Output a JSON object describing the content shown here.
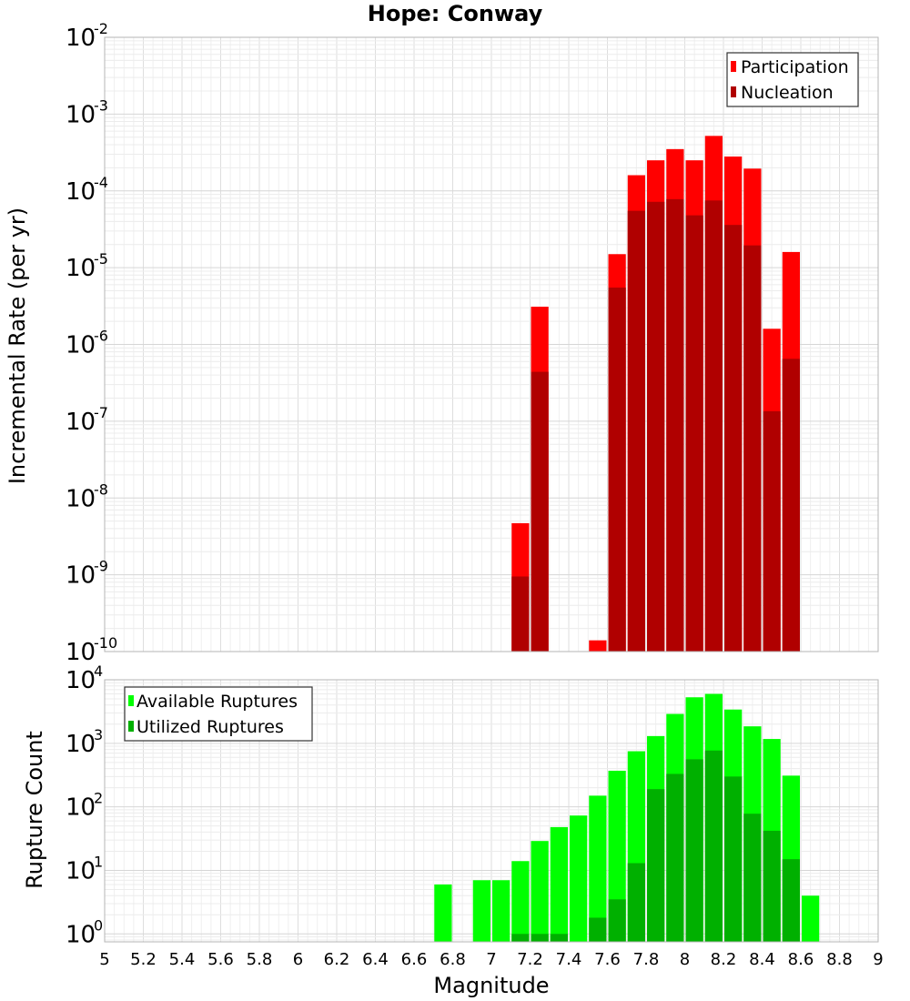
{
  "chart_data": [
    {
      "type": "bar",
      "title": "Hope: Conway",
      "ylabel": "Incremental Rate (per yr)",
      "xlabel": "",
      "xlim": [
        5,
        9
      ],
      "ylim": [
        1e-10,
        0.01
      ],
      "y_scale": "log",
      "grid": true,
      "bar_width": 0.1,
      "legend": {
        "position": "top-right",
        "entries": [
          "Participation",
          "Nucleation"
        ]
      },
      "colors": {
        "Participation": "#ff0000",
        "Nucleation": "#b00000"
      },
      "series": [
        {
          "name": "Participation",
          "x": [
            7.15,
            7.25,
            7.55,
            7.65,
            7.75,
            7.85,
            7.95,
            8.05,
            8.15,
            8.25,
            8.35,
            8.45,
            8.55
          ],
          "values": [
            4.7e-09,
            3.1e-06,
            1.4e-10,
            1.5e-05,
            0.00016,
            0.00025,
            0.00035,
            0.00025,
            0.00052,
            0.00028,
            0.000195,
            1.6e-06,
            1.6e-05
          ]
        },
        {
          "name": "Nucleation",
          "x": [
            7.15,
            7.25,
            7.65,
            7.75,
            7.85,
            7.95,
            8.05,
            8.15,
            8.25,
            8.35,
            8.45,
            8.55
          ],
          "values": [
            9.5e-10,
            4.4e-07,
            5.5e-06,
            5.5e-05,
            7.2e-05,
            7.8e-05,
            4.8e-05,
            7.5e-05,
            3.6e-05,
            1.95e-05,
            1.35e-07,
            6.5e-07
          ]
        }
      ]
    },
    {
      "type": "bar",
      "title": "",
      "ylabel": "Rupture Count",
      "xlabel": "Magnitude",
      "xlim": [
        5,
        9
      ],
      "ylim": [
        0.75,
        10000
      ],
      "y_scale": "log",
      "grid": true,
      "bar_width": 0.1,
      "x_ticks": [
        "5",
        "5.2",
        "5.4",
        "5.6",
        "5.8",
        "6",
        "6.2",
        "6.4",
        "6.6",
        "6.8",
        "7",
        "7.2",
        "7.4",
        "7.6",
        "7.8",
        "8",
        "8.2",
        "8.4",
        "8.6",
        "8.8",
        "9"
      ],
      "legend": {
        "position": "top-left",
        "entries": [
          "Available Ruptures",
          "Utilized Ruptures"
        ]
      },
      "colors": {
        "Available Ruptures": "#00ff00",
        "Utilized Ruptures": "#00b000"
      },
      "series": [
        {
          "name": "Available Ruptures",
          "x": [
            6.75,
            6.95,
            7.05,
            7.15,
            7.25,
            7.35,
            7.45,
            7.55,
            7.65,
            7.75,
            7.85,
            7.95,
            8.05,
            8.15,
            8.25,
            8.35,
            8.45,
            8.55,
            8.65
          ],
          "values": [
            6,
            7,
            7,
            14,
            29,
            48,
            73,
            150,
            370,
            750,
            1300,
            2900,
            5300,
            6000,
            3400,
            1850,
            1170,
            310,
            4
          ]
        },
        {
          "name": "Utilized Ruptures",
          "x": [
            7.15,
            7.25,
            7.35,
            7.55,
            7.65,
            7.75,
            7.85,
            7.95,
            8.05,
            8.15,
            8.25,
            8.35,
            8.45,
            8.55
          ],
          "values": [
            1,
            1,
            1,
            1.8,
            3.5,
            13,
            190,
            330,
            560,
            770,
            300,
            78,
            42,
            15
          ]
        }
      ]
    }
  ]
}
